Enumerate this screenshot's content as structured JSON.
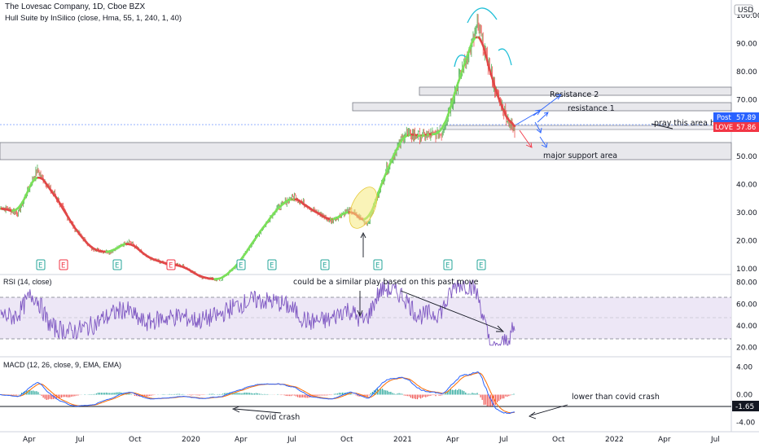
{
  "header": {
    "title": "The Lovesac Company, 1D, Cboe BZX",
    "indicator": "Hull Suite by InSilico (close, Hma, 55, 1, 240, 1, 40)"
  },
  "price_axis": {
    "currency": "USD",
    "ticks": [
      "100.00",
      "90.00",
      "80.00",
      "70.00",
      "60.00",
      "50.00",
      "40.00",
      "30.00",
      "20.00",
      "10.00"
    ],
    "post_label": "Post",
    "post_value": "57.89",
    "symbol_label": "LOVE",
    "last_value": "57.86"
  },
  "rsi": {
    "title": "RSI (14, close)",
    "ticks": [
      "80.00",
      "60.00",
      "40.00",
      "20.00"
    ]
  },
  "macd": {
    "title": "MACD (12, 26, close, 9, EMA, EMA)",
    "ticks": [
      "4.00",
      "0.00",
      "-4.00"
    ],
    "current_value": "-1.65"
  },
  "time_axis": [
    "Apr",
    "Jul",
    "Oct",
    "2020",
    "Apr",
    "Jul",
    "Oct",
    "2021",
    "Apr",
    "Jul",
    "Oct",
    "2022",
    "Apr",
    "Jul"
  ],
  "annotations": {
    "resistance2": "Resistance 2",
    "resistance1": "resistance 1",
    "pray": "pray this area holds",
    "support": "major support area",
    "similar_play": "could be a similar play based on this past move",
    "covid": "covid crash",
    "lower": "lower than covid crash"
  },
  "events": [
    "E",
    "E",
    "E",
    "E",
    "E",
    "E",
    "E",
    "E",
    "E",
    "E"
  ],
  "colors": {
    "up": "#4caf50",
    "down": "#ef5350",
    "hull_up": "#7be05a",
    "hull_down": "#e04848",
    "rsi_line": "#7e57c2",
    "rsi_band": "#ede7f6",
    "macd_line": "#2962ff",
    "signal_line": "#ff6d00",
    "hist_pos": "#26a69a",
    "hist_neg": "#ef5350",
    "label_blue": "#2962ff",
    "label_red": "#f23645"
  },
  "chart_data": {
    "type": "line",
    "title": "The Lovesac Company, 1D, Cboe BZX",
    "ylabel": "USD",
    "price_ylim": [
      5,
      104
    ],
    "x": [
      "2019-03",
      "2019-04",
      "2019-05",
      "2019-06",
      "2019-07",
      "2019-08",
      "2019-09",
      "2019-10",
      "2019-11",
      "2019-12",
      "2020-01",
      "2020-02",
      "2020-03",
      "2020-04",
      "2020-05",
      "2020-06",
      "2020-07",
      "2020-08",
      "2020-09",
      "2020-10",
      "2020-11",
      "2020-12",
      "2021-01",
      "2021-02",
      "2021-03",
      "2021-04",
      "2021-05",
      "2021-06",
      "2021-07"
    ],
    "series": [
      {
        "name": "LOVE",
        "values": [
          32,
          30,
          45,
          36,
          25,
          17,
          16,
          20,
          14,
          12,
          11,
          7,
          6,
          12,
          22,
          31,
          36,
          31,
          27,
          31,
          26,
          45,
          58,
          57,
          58,
          78,
          96,
          72,
          58
        ]
      }
    ],
    "resistance_zones": [
      [
        69,
        72
      ],
      [
        64,
        67
      ]
    ],
    "support_zone": [
      46,
      52
    ],
    "rsi_ylim": [
      15,
      85
    ],
    "macd_ylim": [
      -5,
      5
    ]
  }
}
